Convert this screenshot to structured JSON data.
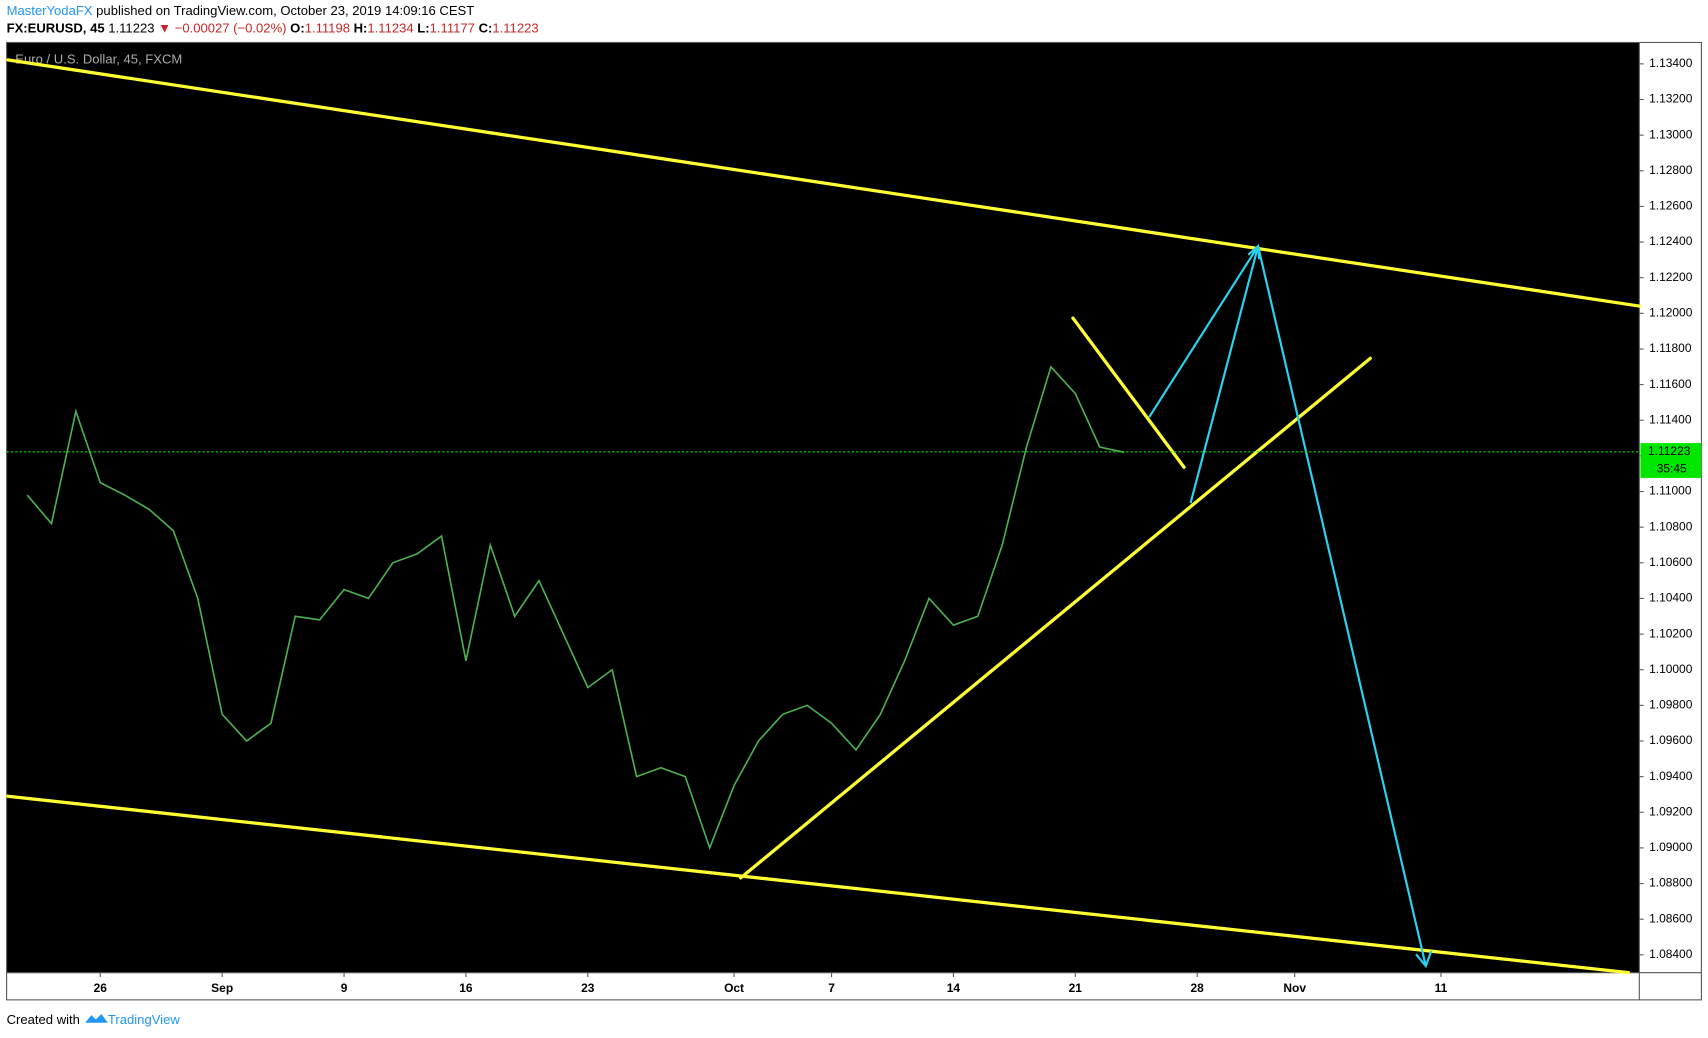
{
  "header": {
    "author": "MasterYodaFX",
    "published": "published on TradingView.com, October 23, 2019 14:09:16 CEST",
    "symbol": "FX:EURUSD, 45",
    "price": "1.11223",
    "change": "▼ −0.00027 (−0.02%)",
    "open_label": "O:",
    "open": "1.11198",
    "high_label": "H:",
    "high": "1.11234",
    "low_label": "L:",
    "low": "1.11177",
    "close_label": "C:",
    "close": "1.11223"
  },
  "footer": {
    "created": "Created with",
    "brand": "TradingView"
  },
  "chart_data": {
    "type": "line",
    "title": "Euro / U.S. Dollar, 45, FXCM",
    "color": "#4caf50",
    "categories": [
      null,
      null,
      null,
      "26",
      null,
      null,
      null,
      null,
      "Sep",
      null,
      null,
      null,
      null,
      "9",
      null,
      null,
      null,
      null,
      "16",
      null,
      null,
      null,
      null,
      "23",
      null,
      null,
      null,
      null,
      null,
      "Oct",
      null,
      null,
      null,
      "7",
      null,
      null,
      null,
      null,
      "14",
      null,
      null,
      null,
      null,
      "21",
      null,
      null,
      null,
      null,
      "28",
      null,
      null,
      null,
      "Nov",
      null,
      null,
      null,
      null,
      null,
      "11",
      null,
      null,
      null,
      null,
      null,
      null,
      null,
      null
    ],
    "values": [
      1.1098,
      1.1082,
      1.1145,
      1.1105,
      1.1098,
      1.109,
      1.1078,
      1.104,
      1.0975,
      1.096,
      1.097,
      1.103,
      1.1028,
      1.1045,
      1.104,
      1.106,
      1.1065,
      1.1075,
      1.1005,
      1.107,
      1.103,
      1.105,
      1.102,
      1.099,
      1.1,
      1.094,
      1.0945,
      1.094,
      1.09,
      1.0935,
      1.096,
      1.0975,
      1.098,
      1.097,
      1.0955,
      1.0975,
      1.1005,
      1.104,
      1.1025,
      1.103,
      1.107,
      1.1125,
      1.117,
      1.1155,
      1.1125,
      1.1122,
      null,
      null,
      null,
      null,
      null,
      null,
      null,
      null,
      null,
      null,
      null,
      null,
      null,
      null,
      null,
      null,
      null,
      null,
      null,
      null,
      null
    ],
    "ylim": [
      1.083,
      1.1352
    ],
    "yticks": [
      {
        "value": 1.084,
        "label": "1.08400"
      },
      {
        "value": 1.086,
        "label": "1.08600"
      },
      {
        "value": 1.088,
        "label": "1.08800"
      },
      {
        "value": 1.09,
        "label": "1.09000"
      },
      {
        "value": 1.092,
        "label": "1.09200"
      },
      {
        "value": 1.094,
        "label": "1.09400"
      },
      {
        "value": 1.096,
        "label": "1.09600"
      },
      {
        "value": 1.098,
        "label": "1.09800"
      },
      {
        "value": 1.1,
        "label": "1.10000"
      },
      {
        "value": 1.102,
        "label": "1.10200"
      },
      {
        "value": 1.104,
        "label": "1.10400"
      },
      {
        "value": 1.106,
        "label": "1.10600"
      },
      {
        "value": 1.108,
        "label": "1.10800"
      },
      {
        "value": 1.11,
        "label": "1.11000"
      },
      {
        "value": 1.112,
        "label": "1.11200"
      },
      {
        "value": 1.114,
        "label": "1.11400"
      },
      {
        "value": 1.116,
        "label": "1.11600"
      },
      {
        "value": 1.118,
        "label": "1.11800"
      },
      {
        "value": 1.12,
        "label": "1.12000"
      },
      {
        "value": 1.122,
        "label": "1.12200"
      },
      {
        "value": 1.124,
        "label": "1.12400"
      },
      {
        "value": 1.126,
        "label": "1.12600"
      },
      {
        "value": 1.128,
        "label": "1.12800"
      },
      {
        "value": 1.13,
        "label": "1.13000"
      },
      {
        "value": 1.132,
        "label": "1.13200"
      },
      {
        "value": 1.134,
        "label": "1.13400"
      }
    ],
    "last_price": 1.11223,
    "countdown": "35:45",
    "price_tag_color": "#00e600"
  }
}
